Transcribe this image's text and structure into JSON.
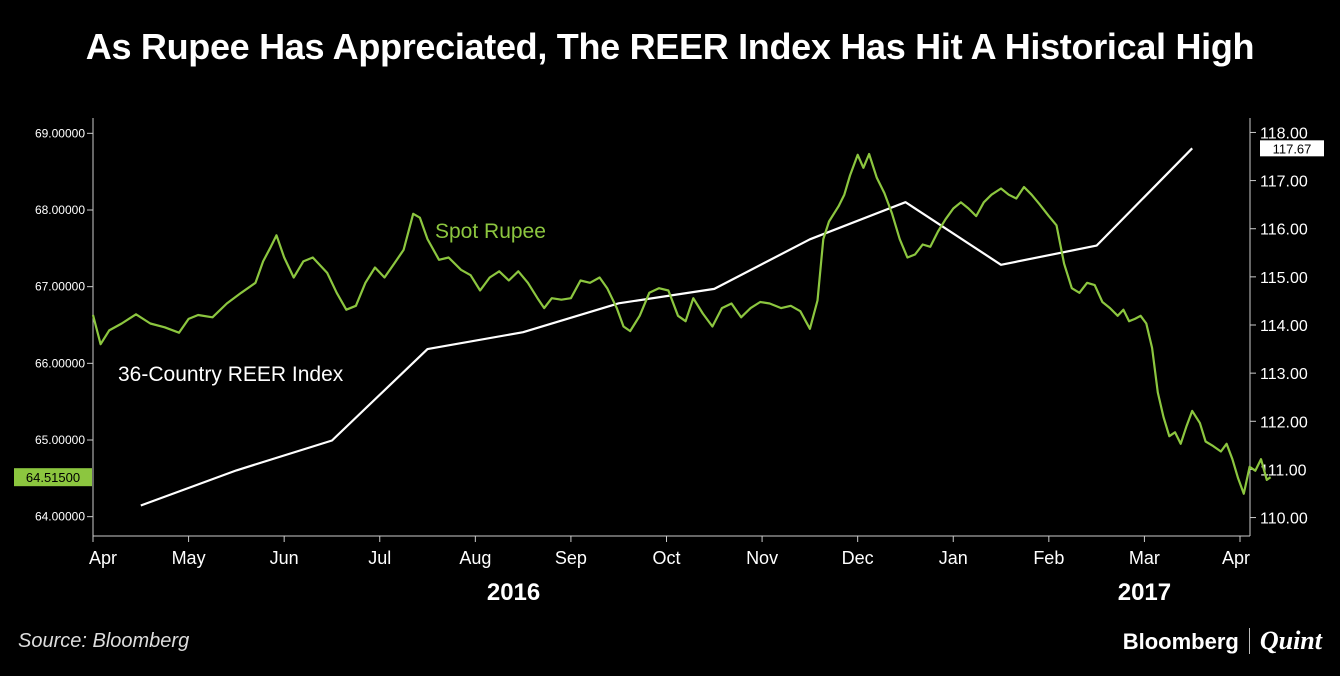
{
  "page": {
    "title": "As Rupee Has Appreciated, The REER Index Has Hit A Historical High",
    "source": "Source: Bloomberg",
    "brand_primary": "Bloomberg",
    "brand_secondary": "Quint"
  },
  "colors": {
    "rupee": "#8cc63f",
    "reer": "#ffffff",
    "background": "#000000"
  },
  "chart_data": {
    "type": "line",
    "title": "As Rupee Has Appreciated, The REER Index Has Hit A Historical High",
    "x_months": [
      "Apr",
      "May",
      "Jun",
      "Jul",
      "Aug",
      "Sep",
      "Oct",
      "Nov",
      "Dec",
      "Jan",
      "Feb",
      "Mar",
      "Apr"
    ],
    "x_years": [
      "2016",
      "2017"
    ],
    "left_axis": {
      "ylim": [
        63.8,
        69.2
      ],
      "ticks": [
        "69.00000",
        "68.00000",
        "67.00000",
        "66.00000",
        "65.00000",
        "64.00000"
      ],
      "last_value_label": "64.51500"
    },
    "right_axis": {
      "ylim": [
        109.7,
        118.3
      ],
      "ticks": [
        "118.00",
        "117.00",
        "116.00",
        "115.00",
        "114.00",
        "113.00",
        "112.00",
        "111.00",
        "110.00"
      ],
      "last_value_label": "117.67"
    },
    "series": [
      {
        "name": "Spot Rupee",
        "axis": "left",
        "label": "Spot Rupee",
        "points": [
          [
            0.0,
            66.63
          ],
          [
            0.08,
            66.25
          ],
          [
            0.17,
            66.43
          ],
          [
            0.3,
            66.52
          ],
          [
            0.45,
            66.64
          ],
          [
            0.6,
            66.52
          ],
          [
            0.75,
            66.47
          ],
          [
            0.9,
            66.4
          ],
          [
            1.0,
            66.58
          ],
          [
            1.1,
            66.63
          ],
          [
            1.25,
            66.6
          ],
          [
            1.4,
            66.78
          ],
          [
            1.55,
            66.92
          ],
          [
            1.7,
            67.05
          ],
          [
            1.78,
            67.33
          ],
          [
            1.86,
            67.52
          ],
          [
            1.92,
            67.67
          ],
          [
            2.0,
            67.38
          ],
          [
            2.1,
            67.12
          ],
          [
            2.2,
            67.33
          ],
          [
            2.3,
            67.38
          ],
          [
            2.45,
            67.18
          ],
          [
            2.55,
            66.92
          ],
          [
            2.65,
            66.7
          ],
          [
            2.75,
            66.75
          ],
          [
            2.85,
            67.05
          ],
          [
            2.95,
            67.25
          ],
          [
            3.05,
            67.12
          ],
          [
            3.15,
            67.3
          ],
          [
            3.25,
            67.48
          ],
          [
            3.35,
            67.95
          ],
          [
            3.42,
            67.9
          ],
          [
            3.5,
            67.62
          ],
          [
            3.62,
            67.35
          ],
          [
            3.72,
            67.38
          ],
          [
            3.85,
            67.22
          ],
          [
            3.95,
            67.15
          ],
          [
            4.05,
            66.95
          ],
          [
            4.15,
            67.12
          ],
          [
            4.25,
            67.2
          ],
          [
            4.35,
            67.08
          ],
          [
            4.45,
            67.2
          ],
          [
            4.55,
            67.05
          ],
          [
            4.65,
            66.85
          ],
          [
            4.72,
            66.72
          ],
          [
            4.8,
            66.85
          ],
          [
            4.9,
            66.83
          ],
          [
            5.0,
            66.85
          ],
          [
            5.1,
            67.08
          ],
          [
            5.2,
            67.05
          ],
          [
            5.3,
            67.12
          ],
          [
            5.38,
            66.98
          ],
          [
            5.48,
            66.72
          ],
          [
            5.55,
            66.48
          ],
          [
            5.62,
            66.42
          ],
          [
            5.72,
            66.62
          ],
          [
            5.82,
            66.92
          ],
          [
            5.92,
            66.98
          ],
          [
            6.02,
            66.95
          ],
          [
            6.12,
            66.62
          ],
          [
            6.2,
            66.55
          ],
          [
            6.28,
            66.85
          ],
          [
            6.38,
            66.65
          ],
          [
            6.48,
            66.48
          ],
          [
            6.58,
            66.72
          ],
          [
            6.68,
            66.78
          ],
          [
            6.78,
            66.6
          ],
          [
            6.88,
            66.72
          ],
          [
            6.98,
            66.8
          ],
          [
            7.08,
            66.78
          ],
          [
            7.2,
            66.72
          ],
          [
            7.3,
            66.75
          ],
          [
            7.4,
            66.68
          ],
          [
            7.5,
            66.45
          ],
          [
            7.58,
            66.82
          ],
          [
            7.64,
            67.62
          ],
          [
            7.7,
            67.85
          ],
          [
            7.8,
            68.05
          ],
          [
            7.86,
            68.2
          ],
          [
            7.92,
            68.45
          ],
          [
            8.0,
            68.72
          ],
          [
            8.06,
            68.55
          ],
          [
            8.12,
            68.73
          ],
          [
            8.2,
            68.42
          ],
          [
            8.28,
            68.22
          ],
          [
            8.36,
            67.95
          ],
          [
            8.44,
            67.62
          ],
          [
            8.52,
            67.38
          ],
          [
            8.6,
            67.42
          ],
          [
            8.68,
            67.55
          ],
          [
            8.76,
            67.52
          ],
          [
            8.84,
            67.72
          ],
          [
            8.92,
            67.88
          ],
          [
            9.0,
            68.02
          ],
          [
            9.08,
            68.1
          ],
          [
            9.16,
            68.02
          ],
          [
            9.24,
            67.92
          ],
          [
            9.32,
            68.1
          ],
          [
            9.4,
            68.2
          ],
          [
            9.5,
            68.28
          ],
          [
            9.58,
            68.2
          ],
          [
            9.66,
            68.15
          ],
          [
            9.74,
            68.3
          ],
          [
            9.82,
            68.2
          ],
          [
            9.9,
            68.08
          ],
          [
            10.0,
            67.92
          ],
          [
            10.08,
            67.8
          ],
          [
            10.16,
            67.3
          ],
          [
            10.24,
            66.98
          ],
          [
            10.32,
            66.92
          ],
          [
            10.4,
            67.05
          ],
          [
            10.48,
            67.02
          ],
          [
            10.56,
            66.8
          ],
          [
            10.64,
            66.72
          ],
          [
            10.72,
            66.62
          ],
          [
            10.78,
            66.7
          ],
          [
            10.84,
            66.55
          ],
          [
            10.9,
            66.58
          ],
          [
            10.96,
            66.62
          ],
          [
            11.02,
            66.52
          ],
          [
            11.08,
            66.2
          ],
          [
            11.14,
            65.62
          ],
          [
            11.2,
            65.3
          ],
          [
            11.26,
            65.05
          ],
          [
            11.32,
            65.1
          ],
          [
            11.38,
            64.95
          ],
          [
            11.44,
            65.18
          ],
          [
            11.5,
            65.38
          ],
          [
            11.58,
            65.22
          ],
          [
            11.64,
            64.98
          ],
          [
            11.72,
            64.92
          ],
          [
            11.8,
            64.85
          ],
          [
            11.86,
            64.95
          ],
          [
            11.92,
            64.75
          ],
          [
            11.98,
            64.5
          ],
          [
            12.04,
            64.3
          ],
          [
            12.1,
            64.65
          ],
          [
            12.16,
            64.6
          ],
          [
            12.22,
            64.75
          ],
          [
            12.28,
            64.48
          ],
          [
            12.32,
            64.515
          ]
        ]
      },
      {
        "name": "36-Country REER Index",
        "axis": "right",
        "label": "36-Country REER Index",
        "points": [
          [
            0.5,
            110.25
          ],
          [
            1.5,
            110.98
          ],
          [
            2.5,
            111.6
          ],
          [
            3.5,
            113.5
          ],
          [
            4.5,
            113.85
          ],
          [
            5.5,
            114.45
          ],
          [
            6.5,
            114.75
          ],
          [
            7.5,
            115.78
          ],
          [
            8.5,
            116.55
          ],
          [
            9.5,
            115.25
          ],
          [
            10.5,
            115.65
          ],
          [
            11.5,
            117.67
          ]
        ]
      }
    ]
  }
}
